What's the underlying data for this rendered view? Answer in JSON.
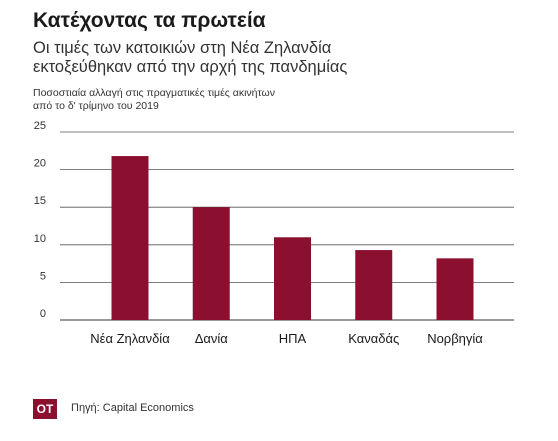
{
  "header": {
    "title": "Κατέχοντας τα πρωτεία",
    "subtitle_lines": [
      "Οι τιμές των κατοικιών στη Νέα Ζηλανδία",
      "εκτοξεύθηκαν από την αρχή της πανδημίας"
    ]
  },
  "chart_data": {
    "type": "bar",
    "title": "Κατέχοντας τα πρωτεία",
    "subtitle": "Οι τιμές των κατοικιών στη Νέα Ζηλανδία εκτοξεύθηκαν από την αρχή της πανδημίας",
    "ylabel_lines": [
      "Ποσοστιαία αλλαγή στις πραγματικές τιμές ακινήτων",
      "από το δ' τρίμηνο του 2019"
    ],
    "categories": [
      "Νέα Ζηλανδία",
      "Δανία",
      "ΗΠΑ",
      "Καναδάς",
      "Νορβηγία"
    ],
    "values": [
      21.8,
      15.0,
      11.0,
      9.3,
      8.2
    ],
    "ylim": [
      0,
      25
    ],
    "yticks": [
      0,
      5,
      10,
      15,
      20,
      25
    ],
    "grid": true,
    "bar_color": "#8b0f2e"
  },
  "footer": {
    "logo": "ΟΤ",
    "source": "Πηγή: Capital Economics"
  }
}
